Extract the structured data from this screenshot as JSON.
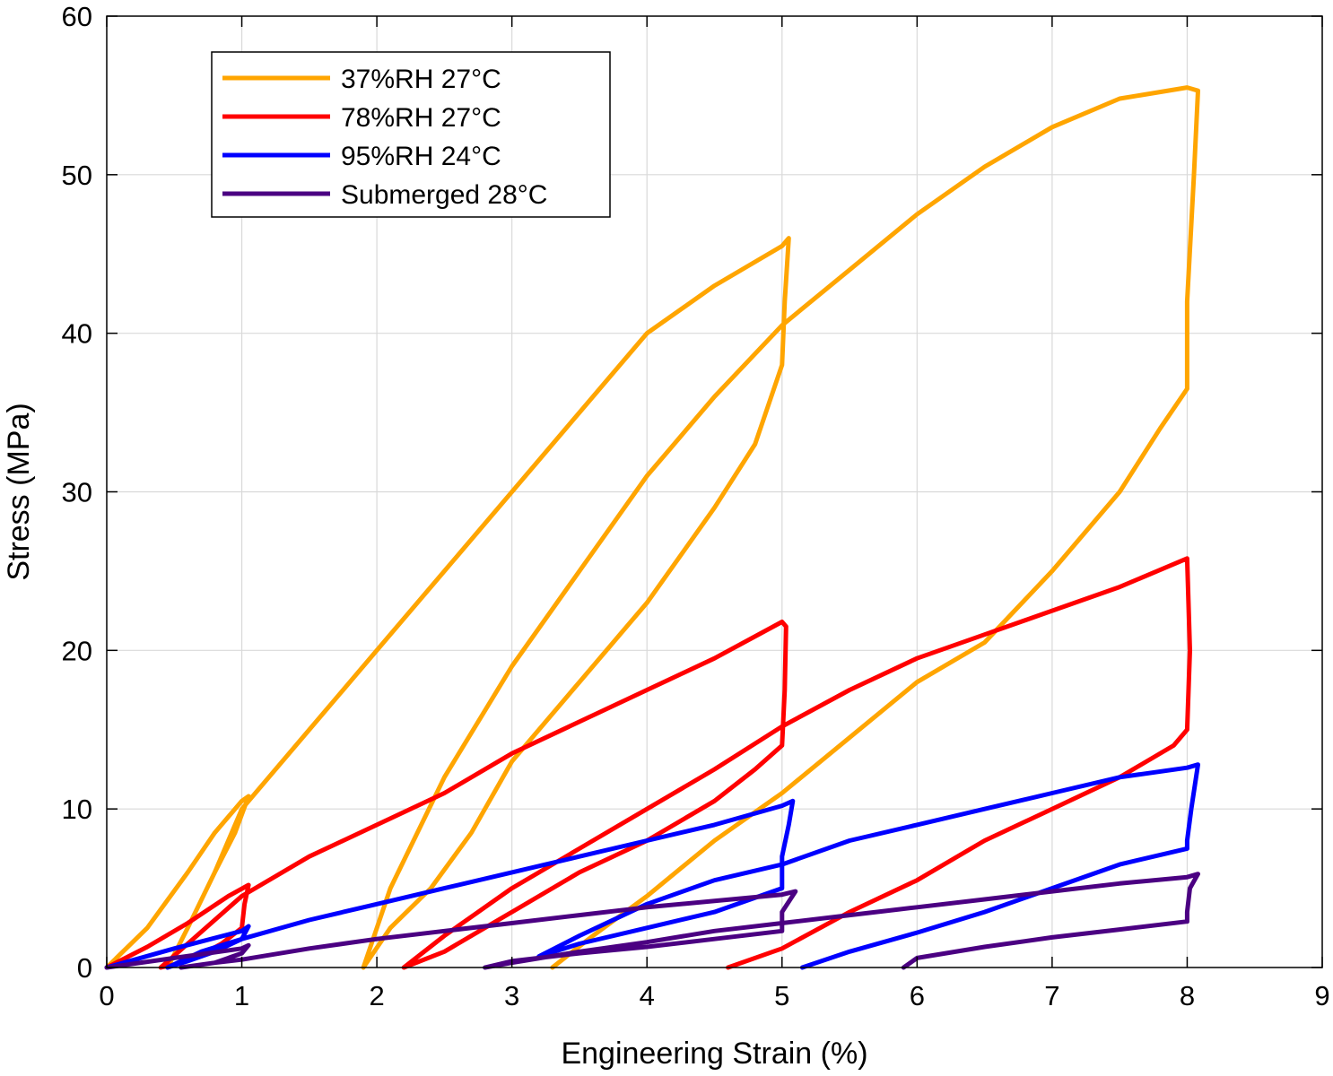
{
  "chart_data": {
    "type": "line",
    "title": "",
    "xlabel": "Engineering Strain (%)",
    "ylabel": "Stress (MPa)",
    "xlim": [
      0,
      9
    ],
    "ylim": [
      0,
      60
    ],
    "xticks": [
      "0",
      "1",
      "2",
      "3",
      "4",
      "5",
      "6",
      "7",
      "8",
      "9"
    ],
    "yticks": [
      "0",
      "10",
      "20",
      "30",
      "40",
      "50",
      "60"
    ],
    "grid": true,
    "legend_position": "top-left",
    "series": [
      {
        "name": "37%RH 27°C",
        "color": "#FFA500",
        "x": [
          0,
          0.3,
          0.6,
          0.8,
          1.0,
          1.05,
          0.95,
          0.8,
          0.6,
          0.45,
          0.6,
          0.8,
          1.0,
          1.5,
          2.0,
          2.5,
          3.0,
          3.5,
          4.0,
          4.5,
          5.0,
          5.05,
          5.02,
          5.0,
          4.8,
          4.5,
          4.0,
          3.5,
          3.0,
          2.7,
          2.4,
          2.1,
          1.9,
          2.1,
          2.5,
          3.0,
          3.5,
          4.0,
          4.5,
          5.0,
          5.5,
          6.0,
          6.5,
          7.0,
          7.5,
          8.0,
          8.08,
          8.05,
          8.0,
          8.0,
          7.8,
          7.5,
          7.0,
          6.5,
          6.0,
          5.5,
          5.0,
          4.5,
          4.0,
          3.6,
          3.3
        ],
        "y": [
          0,
          2.5,
          6,
          8.5,
          10.5,
          10.8,
          8.5,
          6,
          2.5,
          0,
          2.5,
          6,
          10,
          15,
          20,
          25,
          30,
          35,
          40,
          43,
          45.5,
          46,
          42,
          38,
          33,
          29,
          23,
          18,
          13,
          8.5,
          5,
          2.5,
          0,
          5,
          12,
          19,
          25,
          31,
          36,
          40.5,
          44,
          47.5,
          50.5,
          53,
          54.8,
          55.5,
          55.3,
          50,
          42,
          36.5,
          34,
          30,
          25,
          20.5,
          18,
          14.5,
          11,
          8,
          4.5,
          2,
          0
        ]
      },
      {
        "name": "78%RH 27°C",
        "color": "#FF0000",
        "x": [
          0,
          0.3,
          0.6,
          0.9,
          1.05,
          1.02,
          1.0,
          0.85,
          0.7,
          0.5,
          0.4,
          0.6,
          1.0,
          1.5,
          2.0,
          2.5,
          3.0,
          3.5,
          4.0,
          4.5,
          5.0,
          5.03,
          5.02,
          5.0,
          4.8,
          4.5,
          4.0,
          3.5,
          3.0,
          2.5,
          2.2,
          2.5,
          3.0,
          3.5,
          4.0,
          4.5,
          5.0,
          5.5,
          6.0,
          6.5,
          7.0,
          7.5,
          8.0,
          8.02,
          8.0,
          7.9,
          7.5,
          7.0,
          6.5,
          6.0,
          5.5,
          5.0,
          4.6
        ],
        "y": [
          0,
          1.3,
          2.8,
          4.5,
          5.2,
          4,
          2.5,
          1.5,
          0.8,
          0.2,
          0,
          1.5,
          4.5,
          7,
          9,
          11,
          13.5,
          15.5,
          17.5,
          19.5,
          21.8,
          21.5,
          17.5,
          14,
          12.5,
          10.5,
          8,
          6,
          3.5,
          1,
          0,
          2,
          5,
          7.5,
          10,
          12.5,
          15.2,
          17.5,
          19.5,
          21,
          22.5,
          24,
          25.8,
          20,
          15,
          14,
          12,
          10,
          8,
          5.5,
          3.5,
          1.2,
          0
        ]
      },
      {
        "name": "95%RH 24°C",
        "color": "#0000FF",
        "x": [
          0,
          0.5,
          1.0,
          1.05,
          1.0,
          0.8,
          0.6,
          0.45,
          0.7,
          1.0,
          1.5,
          2.0,
          2.5,
          3.0,
          3.5,
          4.0,
          4.5,
          5.0,
          5.08,
          5.05,
          5.0,
          5.0,
          4.5,
          4.0,
          3.5,
          3.2,
          3.5,
          4.0,
          4.5,
          5.0,
          5.5,
          6.0,
          6.5,
          7.0,
          7.5,
          8.0,
          8.08,
          8.03,
          8.0,
          8.0,
          7.5,
          7.0,
          6.5,
          6.0,
          5.5,
          5.15
        ],
        "y": [
          0,
          1.2,
          2.3,
          2.6,
          1.8,
          1,
          0.4,
          0,
          1,
          1.8,
          3,
          4,
          5,
          6,
          7,
          8,
          9,
          10.2,
          10.5,
          9,
          7,
          5,
          3.5,
          2.5,
          1.5,
          0.7,
          2,
          4,
          5.5,
          6.5,
          8,
          9,
          10,
          11,
          12,
          12.6,
          12.8,
          10,
          8,
          7.5,
          6.5,
          5,
          3.5,
          2.2,
          1,
          0
        ]
      },
      {
        "name": "Submerged 28°C",
        "color": "#4B0082",
        "x": [
          0,
          0.5,
          1.0,
          1.05,
          1.0,
          0.8,
          0.55,
          0.8,
          1.0,
          1.5,
          2.0,
          2.5,
          3.0,
          3.5,
          4.0,
          4.5,
          5.0,
          5.1,
          5.0,
          5.0,
          4.5,
          4.0,
          3.5,
          3.0,
          2.8,
          3.0,
          3.5,
          4.0,
          4.5,
          5.0,
          5.5,
          6.0,
          6.5,
          7.0,
          7.5,
          8.0,
          8.08,
          8.02,
          8.0,
          8.0,
          7.5,
          7.0,
          6.5,
          6.0,
          5.9
        ],
        "y": [
          0,
          0.6,
          1.2,
          1.4,
          0.9,
          0.3,
          0,
          0.3,
          0.5,
          1.2,
          1.8,
          2.3,
          2.8,
          3.3,
          3.8,
          4.2,
          4.6,
          4.8,
          3.5,
          2.3,
          1.8,
          1.3,
          0.9,
          0.4,
          0,
          0.3,
          1.0,
          1.6,
          2.3,
          2.8,
          3.3,
          3.8,
          4.3,
          4.8,
          5.3,
          5.7,
          5.9,
          5.0,
          3.5,
          2.9,
          2.4,
          1.9,
          1.3,
          0.6,
          0
        ]
      }
    ]
  }
}
